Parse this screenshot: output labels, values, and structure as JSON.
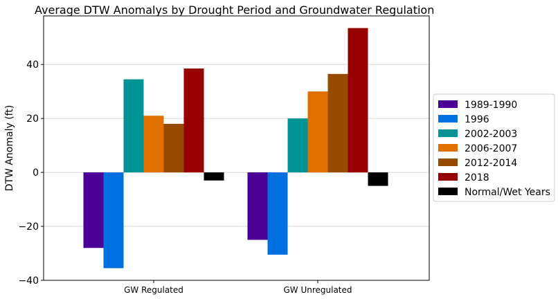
{
  "chart_data": {
    "type": "bar",
    "title": "Average DTW Anomalys by Drought Period and Groundwater Regulation",
    "xlabel": "",
    "ylabel": "DTW Anomaly (ft)",
    "ylim": [
      -40,
      58
    ],
    "yticks": [
      -40,
      -20,
      0,
      20,
      40
    ],
    "grid": "horizontal",
    "legend_position": "right",
    "categories": [
      "GW Regulated",
      "GW Unregulated"
    ],
    "series": [
      {
        "name": "1989-1990",
        "color": "#4b0096",
        "values": [
          -28,
          -25
        ]
      },
      {
        "name": "1996",
        "color": "#0070e0",
        "values": [
          -35.5,
          -30.5
        ]
      },
      {
        "name": "2002-2003",
        "color": "#009494",
        "values": [
          34.5,
          20
        ]
      },
      {
        "name": "2006-2007",
        "color": "#e07000",
        "values": [
          21,
          30
        ]
      },
      {
        "name": "2012-2014",
        "color": "#964b00",
        "values": [
          18,
          36.5
        ]
      },
      {
        "name": "2018",
        "color": "#960000",
        "values": [
          38.5,
          53.5
        ]
      },
      {
        "name": "Normal/Wet Years",
        "color": "#000000",
        "values": [
          -3,
          -5
        ]
      }
    ]
  }
}
